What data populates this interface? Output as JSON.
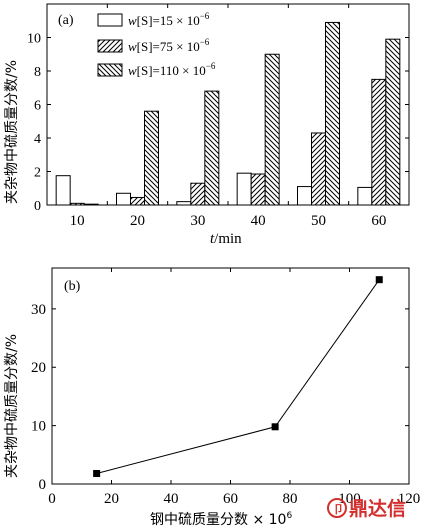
{
  "chart_data": [
    {
      "type": "bar",
      "panel_label": "(a)",
      "categories": [
        "10",
        "20",
        "30",
        "40",
        "50",
        "60"
      ],
      "series": [
        {
          "name": "w[S]=15×10⁻⁶",
          "values": [
            1.75,
            0.7,
            0.2,
            1.9,
            1.1,
            1.05
          ]
        },
        {
          "name": "w[S]=75×10⁻⁶",
          "values": [
            0.1,
            0.45,
            1.3,
            1.85,
            4.3,
            7.5
          ]
        },
        {
          "name": "w[S]=110×10⁻⁶",
          "values": [
            0.05,
            5.6,
            6.8,
            9.0,
            10.9,
            9.9
          ]
        }
      ],
      "legend_series": [
        {
          "prefix": "w",
          "mid": "[S]=15 × 10",
          "exp": "−6"
        },
        {
          "prefix": "w",
          "mid": "[S]=75 × 10",
          "exp": "−6"
        },
        {
          "prefix": "w",
          "mid": "[S]=110 × 10",
          "exp": "−6"
        }
      ],
      "xlabel_italic": "t",
      "xlabel_rest": "/min",
      "ylabel": "夹杂物中硫质量分数/%",
      "ylim": [
        0,
        12
      ],
      "yticks": [
        "0",
        "2",
        "4",
        "6",
        "8",
        "10"
      ],
      "legend_position": "top-left"
    },
    {
      "type": "line",
      "panel_label": "(b)",
      "x": [
        15,
        75,
        110
      ],
      "y": [
        1.8,
        9.8,
        35.0
      ],
      "xlabel": "钢中硫质量分数 × 10",
      "xlabel_exp": "6",
      "ylabel": "夹杂物中硫质量分数/%",
      "xlim": [
        0,
        120
      ],
      "ylim": [
        0,
        37
      ],
      "xticks": [
        "0",
        "20",
        "40",
        "60",
        "80",
        "100",
        "120"
      ],
      "yticks": [
        "0",
        "10",
        "20",
        "30"
      ]
    }
  ],
  "watermark": {
    "text": "鼎达信",
    "color": "#d32f2f"
  }
}
